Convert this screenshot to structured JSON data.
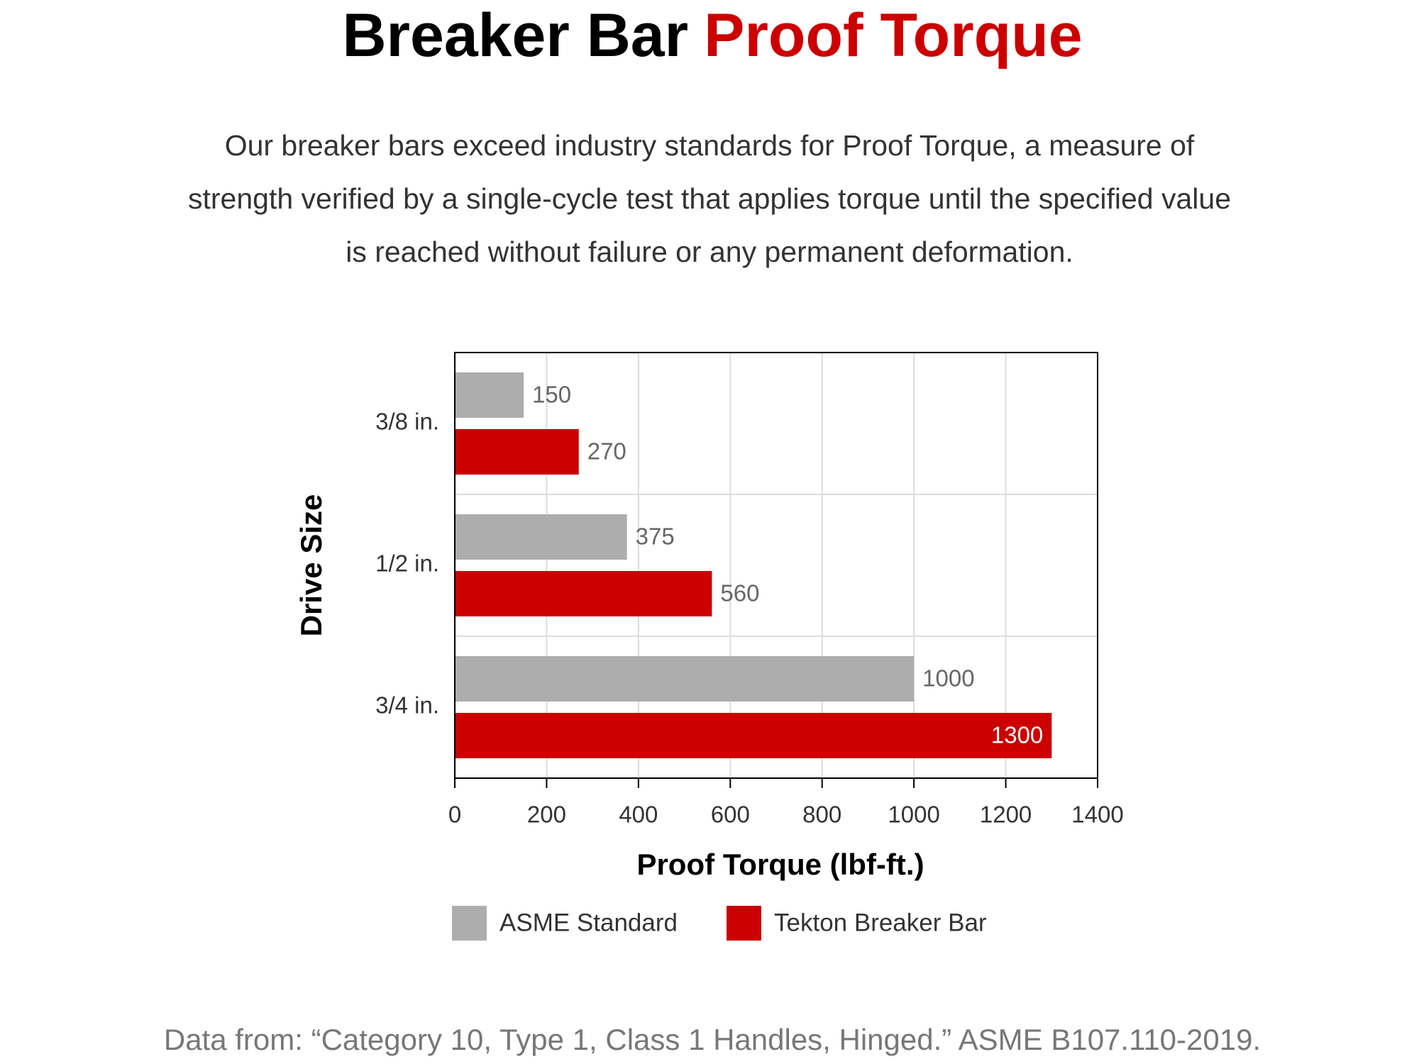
{
  "chart_data": {
    "type": "barh",
    "title": [
      "Breaker Bar",
      "Proof Torque"
    ],
    "subtitle": "Our breaker bars exceed industry standards for Proof Torque, a measure of strength verified by a single-cycle test that applies torque until the specified value is reached without failure or any permanent deformation.",
    "categories": [
      "3/8 in.",
      "1/2 in.",
      "3/4 in."
    ],
    "series": [
      {
        "name": "ASME Standard",
        "color": "#adadad",
        "values": [
          150,
          375,
          1000
        ]
      },
      {
        "name": "Tekton Breaker Bar",
        "color": "#cc0000",
        "values": [
          270,
          560,
          1300
        ]
      }
    ],
    "xlim": [
      0,
      1400
    ],
    "xticks": [
      0,
      200,
      400,
      600,
      800,
      1000,
      1200,
      1400
    ],
    "x_label": "Proof Torque (lbf-ft.)",
    "y_label": "Drive Size",
    "grid": true,
    "legend": "bottom",
    "source": "Data from: “Category 10, Type 1, Class 1 Handles, Hinged.” ASME B107.110-2019."
  }
}
